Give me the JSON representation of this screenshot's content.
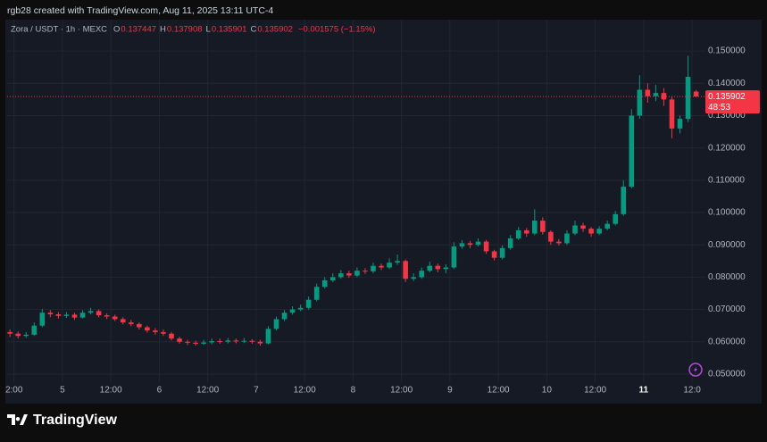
{
  "chart_data": {
    "type": "candlestick",
    "attribution": "rgb28 created with TradingView.com, Aug 11, 2025 13:11 UTC-4",
    "symbol": "Zora / USDT · 1h · MEXC",
    "ohlc_header": [
      {
        "key": "O",
        "value": "0.137447"
      },
      {
        "key": "H",
        "value": "0.137908"
      },
      {
        "key": "L",
        "value": "0.135901"
      },
      {
        "key": "C",
        "value": "0.135902"
      }
    ],
    "change": "−0.001575 (−1.15%)",
    "brand": "TradingView",
    "up_color": "#089981",
    "down_color": "#f23645",
    "x": [
      -13,
      -11,
      -9,
      -7,
      -5,
      -3,
      -1,
      1,
      3,
      5,
      7,
      9,
      11,
      13,
      15,
      17,
      19,
      21,
      23,
      25,
      27,
      29,
      31,
      33,
      35,
      37,
      39,
      41,
      43,
      45,
      47,
      49,
      51,
      53,
      55,
      57,
      59,
      61,
      63,
      65,
      67,
      69,
      71,
      73,
      75,
      77,
      79,
      81,
      83,
      85,
      87,
      89,
      91,
      93,
      95,
      97,
      99,
      101,
      103,
      105,
      107,
      109,
      111,
      113,
      115,
      117,
      119,
      121,
      123,
      125,
      127,
      129,
      131,
      133,
      135,
      137,
      139,
      141,
      143,
      145,
      147,
      149,
      151,
      153,
      155,
      157
    ],
    "open": [
      0.063,
      0.0625,
      0.0618,
      0.0622,
      0.065,
      0.069,
      0.0685,
      0.068,
      0.0684,
      0.0675,
      0.069,
      0.0695,
      0.0682,
      0.0678,
      0.067,
      0.066,
      0.0655,
      0.0645,
      0.0635,
      0.063,
      0.0625,
      0.061,
      0.06,
      0.0597,
      0.0594,
      0.0598,
      0.0602,
      0.06,
      0.0604,
      0.0601,
      0.0603,
      0.06,
      0.0595,
      0.064,
      0.067,
      0.069,
      0.07,
      0.0705,
      0.073,
      0.077,
      0.079,
      0.08,
      0.0812,
      0.0805,
      0.082,
      0.0818,
      0.0835,
      0.083,
      0.0845,
      0.085,
      0.0795,
      0.08,
      0.082,
      0.0835,
      0.0825,
      0.083,
      0.0895,
      0.0905,
      0.09,
      0.091,
      0.088,
      0.086,
      0.089,
      0.092,
      0.0945,
      0.0935,
      0.0975,
      0.094,
      0.091,
      0.0905,
      0.0935,
      0.096,
      0.095,
      0.0935,
      0.095,
      0.0965,
      0.0995,
      0.108,
      0.13,
      0.138,
      0.136,
      0.137,
      0.135,
      0.126,
      0.129,
      0.137447
    ],
    "high": [
      0.0638,
      0.0632,
      0.063,
      0.066,
      0.0702,
      0.0698,
      0.0692,
      0.0692,
      0.069,
      0.0698,
      0.0705,
      0.07,
      0.0688,
      0.0684,
      0.0676,
      0.0668,
      0.066,
      0.065,
      0.0642,
      0.0638,
      0.063,
      0.0616,
      0.0606,
      0.0604,
      0.0606,
      0.061,
      0.061,
      0.0612,
      0.061,
      0.0612,
      0.0608,
      0.0606,
      0.0648,
      0.0678,
      0.0698,
      0.071,
      0.0715,
      0.074,
      0.078,
      0.08,
      0.0812,
      0.0822,
      0.082,
      0.083,
      0.0828,
      0.0845,
      0.0842,
      0.0858,
      0.087,
      0.0855,
      0.0812,
      0.083,
      0.0848,
      0.0842,
      0.084,
      0.0908,
      0.0915,
      0.0912,
      0.092,
      0.0915,
      0.0885,
      0.0898,
      0.093,
      0.0955,
      0.0952,
      0.101,
      0.0985,
      0.0945,
      0.0918,
      0.0945,
      0.0975,
      0.0968,
      0.0955,
      0.0958,
      0.0975,
      0.1005,
      0.11,
      0.132,
      0.1425,
      0.14,
      0.1395,
      0.1385,
      0.136,
      0.13,
      0.1485,
      0.137908
    ],
    "low": [
      0.0615,
      0.061,
      0.0612,
      0.0618,
      0.0645,
      0.0676,
      0.0672,
      0.0674,
      0.0668,
      0.0672,
      0.0685,
      0.0676,
      0.067,
      0.0664,
      0.0654,
      0.0648,
      0.0638,
      0.0628,
      0.0622,
      0.0618,
      0.0604,
      0.0594,
      0.059,
      0.0588,
      0.059,
      0.0592,
      0.0594,
      0.0595,
      0.0595,
      0.0596,
      0.0594,
      0.0588,
      0.0592,
      0.0635,
      0.0664,
      0.0684,
      0.0695,
      0.07,
      0.0725,
      0.0765,
      0.0785,
      0.0795,
      0.0798,
      0.08,
      0.081,
      0.0812,
      0.0822,
      0.0825,
      0.0838,
      0.0785,
      0.0788,
      0.0795,
      0.0815,
      0.0815,
      0.0812,
      0.0825,
      0.0888,
      0.089,
      0.0895,
      0.0872,
      0.0852,
      0.0855,
      0.0885,
      0.0915,
      0.0925,
      0.093,
      0.0932,
      0.09,
      0.0898,
      0.09,
      0.093,
      0.094,
      0.0925,
      0.093,
      0.0945,
      0.096,
      0.099,
      0.1075,
      0.129,
      0.134,
      0.1345,
      0.133,
      0.123,
      0.1245,
      0.128,
      0.135901
    ],
    "close": [
      0.0625,
      0.0618,
      0.0622,
      0.065,
      0.069,
      0.0685,
      0.068,
      0.0684,
      0.0675,
      0.069,
      0.0695,
      0.0682,
      0.0678,
      0.067,
      0.066,
      0.0655,
      0.0645,
      0.0635,
      0.063,
      0.0625,
      0.061,
      0.06,
      0.0597,
      0.0594,
      0.0598,
      0.0602,
      0.06,
      0.0604,
      0.0601,
      0.0603,
      0.06,
      0.0595,
      0.064,
      0.067,
      0.069,
      0.07,
      0.0705,
      0.073,
      0.077,
      0.079,
      0.08,
      0.0812,
      0.0805,
      0.082,
      0.0818,
      0.0835,
      0.083,
      0.0845,
      0.085,
      0.0795,
      0.08,
      0.082,
      0.0835,
      0.0825,
      0.083,
      0.0895,
      0.0905,
      0.09,
      0.091,
      0.088,
      0.086,
      0.089,
      0.092,
      0.0945,
      0.0935,
      0.0975,
      0.094,
      0.091,
      0.0905,
      0.0935,
      0.096,
      0.095,
      0.0935,
      0.095,
      0.0965,
      0.0995,
      0.108,
      0.13,
      0.138,
      0.136,
      0.137,
      0.135,
      0.126,
      0.129,
      0.142,
      0.135902
    ],
    "last_price": 0.135902,
    "countdown": "48:53",
    "xlim": [
      -13.7,
      159.3
    ],
    "ylim": [
      0.0475,
      0.1597
    ],
    "xticks": [
      {
        "value": -12,
        "label": "2:00"
      },
      {
        "value": 0,
        "label": "5"
      },
      {
        "value": 12,
        "label": "12:00"
      },
      {
        "value": 24,
        "label": "6"
      },
      {
        "value": 36,
        "label": "12:00"
      },
      {
        "value": 48,
        "label": "7"
      },
      {
        "value": 60,
        "label": "12:00"
      },
      {
        "value": 72,
        "label": "8"
      },
      {
        "value": 84,
        "label": "12:00"
      },
      {
        "value": 96,
        "label": "9"
      },
      {
        "value": 108,
        "label": "12:00"
      },
      {
        "value": 120,
        "label": "10"
      },
      {
        "value": 132,
        "label": "12:00"
      },
      {
        "value": 144,
        "label": "11",
        "bold": true
      },
      {
        "value": 156,
        "label": "12:0"
      }
    ],
    "yticks": [
      {
        "value": 0.05,
        "label": "0.050000"
      },
      {
        "value": 0.06,
        "label": "0.060000"
      },
      {
        "value": 0.07,
        "label": "0.070000"
      },
      {
        "value": 0.08,
        "label": "0.080000"
      },
      {
        "value": 0.09,
        "label": "0.090000"
      },
      {
        "value": 0.1,
        "label": "0.100000"
      },
      {
        "value": 0.11,
        "label": "0.110000"
      },
      {
        "value": 0.12,
        "label": "0.120000"
      },
      {
        "value": 0.13,
        "label": "0.130000"
      },
      {
        "value": 0.14,
        "label": "0.140000"
      },
      {
        "value": 0.15,
        "label": "0.150000"
      }
    ],
    "grid": true
  }
}
